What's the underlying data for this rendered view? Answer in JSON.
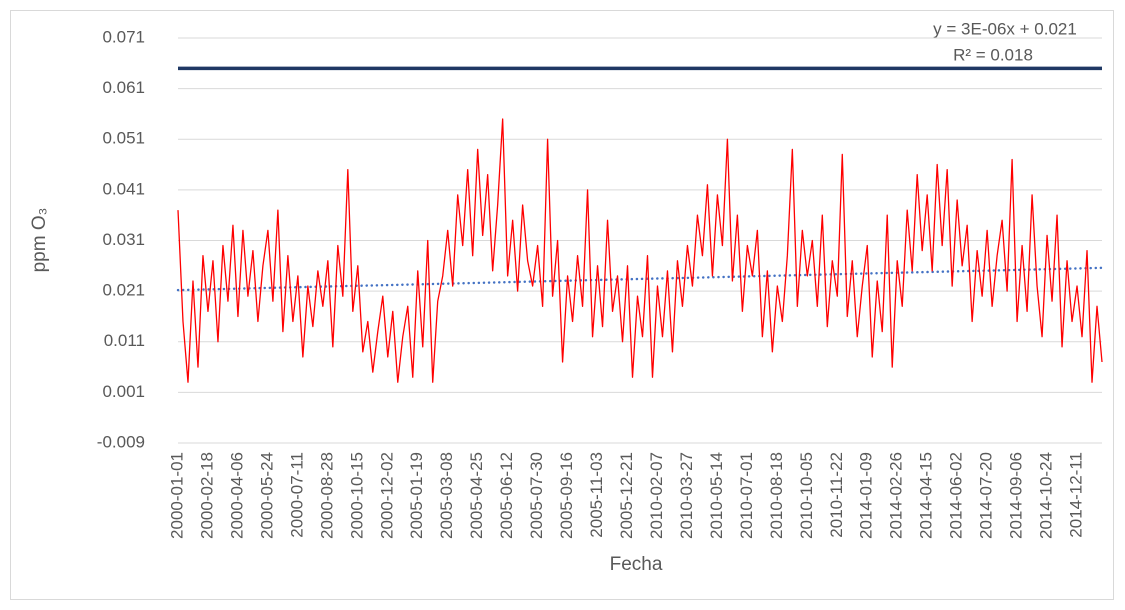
{
  "chart_data": {
    "type": "line",
    "y_label": "ppm O₃",
    "x_label": "Fecha",
    "annotations": [
      "y = 3E-06x + 0.021",
      "R² = 0.018"
    ],
    "ylim": [
      -0.009,
      0.071
    ],
    "yticks": [
      -0.009,
      0.001,
      0.011,
      0.021,
      0.031,
      0.041,
      0.051,
      0.061,
      0.071
    ],
    "grid": true,
    "reference_line": {
      "value": 0.065,
      "color": "#1f3864"
    },
    "trend_line": {
      "y_start": 0.0212,
      "y_end": 0.0256,
      "color": "#4472c4"
    },
    "categories": [
      "2000-01-01",
      null,
      null,
      null,
      null,
      null,
      "2000-02-18",
      null,
      null,
      null,
      null,
      null,
      "2000-04-06",
      null,
      null,
      null,
      null,
      null,
      "2000-05-24",
      null,
      null,
      null,
      null,
      null,
      "2000-07-11",
      null,
      null,
      null,
      null,
      null,
      "2000-08-28",
      null,
      null,
      null,
      null,
      null,
      "2000-10-15",
      null,
      null,
      null,
      null,
      null,
      "2000-12-02",
      null,
      null,
      null,
      null,
      null,
      "2005-01-19",
      null,
      null,
      null,
      null,
      null,
      "2005-03-08",
      null,
      null,
      null,
      null,
      null,
      "2005-04-25",
      null,
      null,
      null,
      null,
      null,
      "2005-06-12",
      null,
      null,
      null,
      null,
      null,
      "2005-07-30",
      null,
      null,
      null,
      null,
      null,
      "2005-09-16",
      null,
      null,
      null,
      null,
      null,
      "2005-11-03",
      null,
      null,
      null,
      null,
      null,
      "2005-12-21",
      null,
      null,
      null,
      null,
      null,
      "2010-02-07",
      null,
      null,
      null,
      null,
      null,
      "2010-03-27",
      null,
      null,
      null,
      null,
      null,
      "2010-05-14",
      null,
      null,
      null,
      null,
      null,
      "2010-07-01",
      null,
      null,
      null,
      null,
      null,
      "2010-08-18",
      null,
      null,
      null,
      null,
      null,
      "2010-10-05",
      null,
      null,
      null,
      null,
      null,
      "2010-11-22",
      null,
      null,
      null,
      null,
      null,
      "2014-01-09",
      null,
      null,
      null,
      null,
      null,
      "2014-02-26",
      null,
      null,
      null,
      null,
      null,
      "2014-04-15",
      null,
      null,
      null,
      null,
      null,
      "2014-06-02",
      null,
      null,
      null,
      null,
      null,
      "2014-07-20",
      null,
      null,
      null,
      null,
      null,
      "2014-09-06",
      null,
      null,
      null,
      null,
      null,
      "2014-10-24",
      null,
      null,
      null,
      null,
      null,
      "2014-12-11",
      null,
      null,
      null,
      null,
      null
    ],
    "series": [
      {
        "color": "#ff0000",
        "values": [
          0.037,
          0.015,
          0.003,
          0.023,
          0.006,
          0.028,
          0.017,
          0.027,
          0.011,
          0.03,
          0.019,
          0.034,
          0.016,
          0.033,
          0.02,
          0.029,
          0.015,
          0.026,
          0.033,
          0.019,
          0.037,
          0.013,
          0.028,
          0.015,
          0.024,
          0.008,
          0.022,
          0.014,
          0.025,
          0.018,
          0.027,
          0.01,
          0.03,
          0.02,
          0.045,
          0.017,
          0.026,
          0.009,
          0.015,
          0.005,
          0.013,
          0.02,
          0.008,
          0.017,
          0.003,
          0.012,
          0.018,
          0.004,
          0.025,
          0.01,
          0.031,
          0.003,
          0.019,
          0.024,
          0.033,
          0.022,
          0.04,
          0.03,
          0.045,
          0.028,
          0.049,
          0.032,
          0.044,
          0.025,
          0.038,
          0.055,
          0.024,
          0.035,
          0.021,
          0.038,
          0.027,
          0.022,
          0.03,
          0.018,
          0.051,
          0.02,
          0.031,
          0.007,
          0.024,
          0.015,
          0.028,
          0.018,
          0.041,
          0.012,
          0.026,
          0.014,
          0.035,
          0.017,
          0.024,
          0.011,
          0.026,
          0.004,
          0.02,
          0.012,
          0.028,
          0.004,
          0.022,
          0.012,
          0.025,
          0.009,
          0.027,
          0.018,
          0.03,
          0.022,
          0.036,
          0.028,
          0.042,
          0.024,
          0.04,
          0.03,
          0.051,
          0.023,
          0.036,
          0.017,
          0.03,
          0.024,
          0.033,
          0.012,
          0.025,
          0.009,
          0.022,
          0.015,
          0.028,
          0.049,
          0.018,
          0.033,
          0.024,
          0.031,
          0.018,
          0.036,
          0.014,
          0.027,
          0.02,
          0.048,
          0.016,
          0.027,
          0.012,
          0.022,
          0.03,
          0.008,
          0.023,
          0.013,
          0.036,
          0.006,
          0.027,
          0.018,
          0.037,
          0.025,
          0.044,
          0.029,
          0.04,
          0.025,
          0.046,
          0.03,
          0.045,
          0.022,
          0.039,
          0.026,
          0.034,
          0.015,
          0.029,
          0.02,
          0.033,
          0.018,
          0.028,
          0.035,
          0.021,
          0.047,
          0.015,
          0.03,
          0.017,
          0.04,
          0.022,
          0.012,
          0.032,
          0.019,
          0.036,
          0.01,
          0.027,
          0.015,
          0.022,
          0.012,
          0.029,
          0.003,
          0.018,
          0.007
        ]
      }
    ]
  }
}
